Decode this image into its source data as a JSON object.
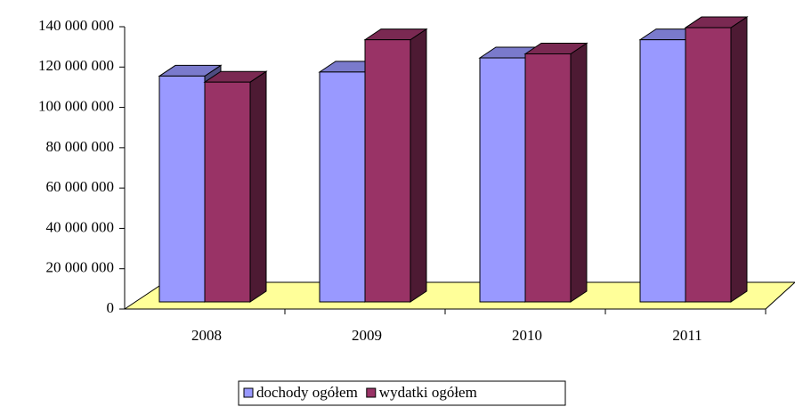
{
  "chart_data": {
    "type": "bar3d",
    "categories": [
      "2008",
      "2009",
      "2010",
      "2011"
    ],
    "series": [
      {
        "name": "dochody ogółem",
        "color": "#9999ff",
        "values": [
          112000000,
          114000000,
          121000000,
          130000000
        ]
      },
      {
        "name": "wydatki ogółem",
        "color": "#993366",
        "values": [
          109000000,
          130000000,
          123000000,
          136000000
        ]
      }
    ],
    "ylim": [
      0,
      140000000
    ],
    "yticks": [
      0,
      {
        "value": 20000000,
        "label": "20 000 000"
      },
      {
        "value": 40000000,
        "label": "40 000 000"
      },
      {
        "value": 60000000,
        "label": "60 000 000"
      },
      {
        "value": 80000000,
        "label": "80 000 000"
      },
      {
        "value": 100000000,
        "label": "100 000 000"
      },
      {
        "value": 120000000,
        "label": "120 000 000"
      },
      {
        "value": 140000000,
        "label": "140 000 000"
      }
    ],
    "floor_color": "#ffff99",
    "legend": "bottom"
  }
}
